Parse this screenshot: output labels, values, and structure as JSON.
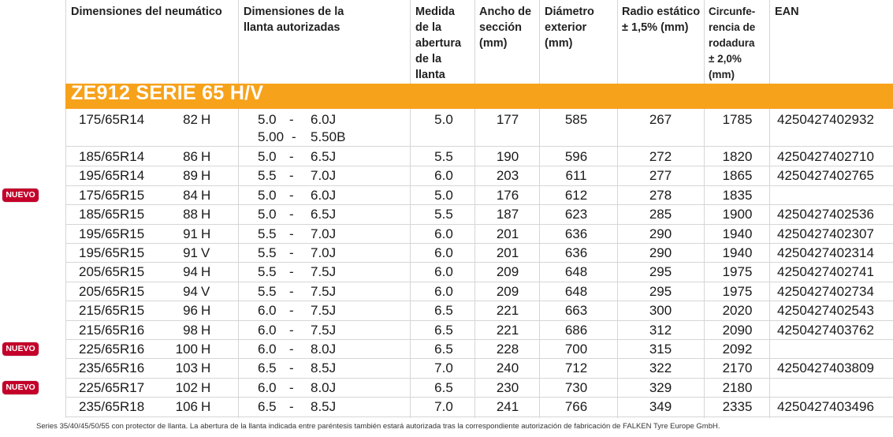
{
  "headers": {
    "size": "Dimensiones del neumático",
    "rim": [
      "Dimensiones de la",
      "llanta autorizadas"
    ],
    "medida": [
      "Medida",
      "de la",
      "abertura",
      "de la",
      "llanta"
    ],
    "ancho": [
      "Ancho de",
      "sección",
      "(mm)"
    ],
    "diametro": [
      "Diámetro",
      "exterior",
      "(mm)"
    ],
    "radio": [
      "Radio estático",
      "± 1,5% (mm)"
    ],
    "circ": [
      "Circunfe-",
      "rencia de",
      "rodadura",
      "± 2,0%",
      "(mm)"
    ],
    "ean": "EAN"
  },
  "series_title": "ZE912 SERIE 65 H/V",
  "badge_label": "NUEVO",
  "rows": [
    {
      "size": "175/65R14",
      "li": "82",
      "sp": "H",
      "rim1": "5.0",
      "dash": "-",
      "rim2": "6.0J",
      "rim1b": "5.00",
      "dashb": "-",
      "rim2b": "5.50B",
      "med": "5.0",
      "anc": "177",
      "dia": "585",
      "rad": "267",
      "cir": "1785",
      "ean": "4250427402932",
      "nuevo": false
    },
    {
      "size": "185/65R14",
      "li": "86",
      "sp": "H",
      "rim1": "5.0",
      "dash": "-",
      "rim2": "6.5J",
      "med": "5.5",
      "anc": "190",
      "dia": "596",
      "rad": "272",
      "cir": "1820",
      "ean": "4250427402710",
      "nuevo": false
    },
    {
      "size": "195/65R14",
      "li": "89",
      "sp": "H",
      "rim1": "5.5",
      "dash": "-",
      "rim2": "7.0J",
      "med": "6.0",
      "anc": "203",
      "dia": "611",
      "rad": "277",
      "cir": "1865",
      "ean": "4250427402765",
      "nuevo": false
    },
    {
      "size": "175/65R15",
      "li": "84",
      "sp": "H",
      "rim1": "5.0",
      "dash": "-",
      "rim2": "6.0J",
      "med": "5.0",
      "anc": "176",
      "dia": "612",
      "rad": "278",
      "cir": "1835",
      "ean": "",
      "nuevo": true
    },
    {
      "size": "185/65R15",
      "li": "88",
      "sp": "H",
      "rim1": "5.0",
      "dash": "-",
      "rim2": "6.5J",
      "med": "5.5",
      "anc": "187",
      "dia": "623",
      "rad": "285",
      "cir": "1900",
      "ean": "4250427402536",
      "nuevo": false
    },
    {
      "size": "195/65R15",
      "li": "91",
      "sp": "H",
      "rim1": "5.5",
      "dash": "-",
      "rim2": "7.0J",
      "med": "6.0",
      "anc": "201",
      "dia": "636",
      "rad": "290",
      "cir": "1940",
      "ean": "4250427402307",
      "nuevo": false
    },
    {
      "size": "195/65R15",
      "li": "91",
      "sp": "V",
      "rim1": "5.5",
      "dash": "-",
      "rim2": "7.0J",
      "med": "6.0",
      "anc": "201",
      "dia": "636",
      "rad": "290",
      "cir": "1940",
      "ean": "4250427402314",
      "nuevo": false
    },
    {
      "size": "205/65R15",
      "li": "94",
      "sp": "H",
      "rim1": "5.5",
      "dash": "-",
      "rim2": "7.5J",
      "med": "6.0",
      "anc": "209",
      "dia": "648",
      "rad": "295",
      "cir": "1975",
      "ean": "4250427402741",
      "nuevo": false
    },
    {
      "size": "205/65R15",
      "li": "94",
      "sp": "V",
      "rim1": "5.5",
      "dash": "-",
      "rim2": "7.5J",
      "med": "6.0",
      "anc": "209",
      "dia": "648",
      "rad": "295",
      "cir": "1975",
      "ean": "4250427402734",
      "nuevo": false
    },
    {
      "size": "215/65R15",
      "li": "96",
      "sp": "H",
      "rim1": "6.0",
      "dash": "-",
      "rim2": "7.5J",
      "med": "6.5",
      "anc": "221",
      "dia": "663",
      "rad": "300",
      "cir": "2020",
      "ean": "4250427402543",
      "nuevo": false
    },
    {
      "size": "215/65R16",
      "li": "98",
      "sp": "H",
      "rim1": "6.0",
      "dash": "-",
      "rim2": "7.5J",
      "med": "6.5",
      "anc": "221",
      "dia": "686",
      "rad": "312",
      "cir": "2090",
      "ean": "4250427403762",
      "nuevo": false
    },
    {
      "size": "225/65R16",
      "li": "100",
      "sp": "H",
      "rim1": "6.0",
      "dash": "-",
      "rim2": "8.0J",
      "med": "6.5",
      "anc": "228",
      "dia": "700",
      "rad": "315",
      "cir": "2092",
      "ean": "",
      "nuevo": true
    },
    {
      "size": "235/65R16",
      "li": "103",
      "sp": "H",
      "rim1": "6.5",
      "dash": "-",
      "rim2": "8.5J",
      "med": "7.0",
      "anc": "240",
      "dia": "712",
      "rad": "322",
      "cir": "2170",
      "ean": "4250427403809",
      "nuevo": false
    },
    {
      "size": "225/65R17",
      "li": "102",
      "sp": "H",
      "rim1": "6.0",
      "dash": "-",
      "rim2": "8.0J",
      "med": "6.5",
      "anc": "230",
      "dia": "730",
      "rad": "329",
      "cir": "2180",
      "ean": "",
      "nuevo": true
    },
    {
      "size": "235/65R18",
      "li": "106",
      "sp": "H",
      "rim1": "6.5",
      "dash": "-",
      "rim2": "8.5J",
      "med": "7.0",
      "anc": "241",
      "dia": "766",
      "rad": "349",
      "cir": "2335",
      "ean": "4250427403496",
      "nuevo": false
    }
  ],
  "footnote": "Series 35/40/45/50/55 con protector de llanta. La abertura de la llanta indicada entre paréntesis también estará autorizada tras la correspondiente autorización de fabricación de FALKEN Tyre Europe GmbH.",
  "colors": {
    "band": "#f7a21b",
    "badge": "#c4002a"
  }
}
